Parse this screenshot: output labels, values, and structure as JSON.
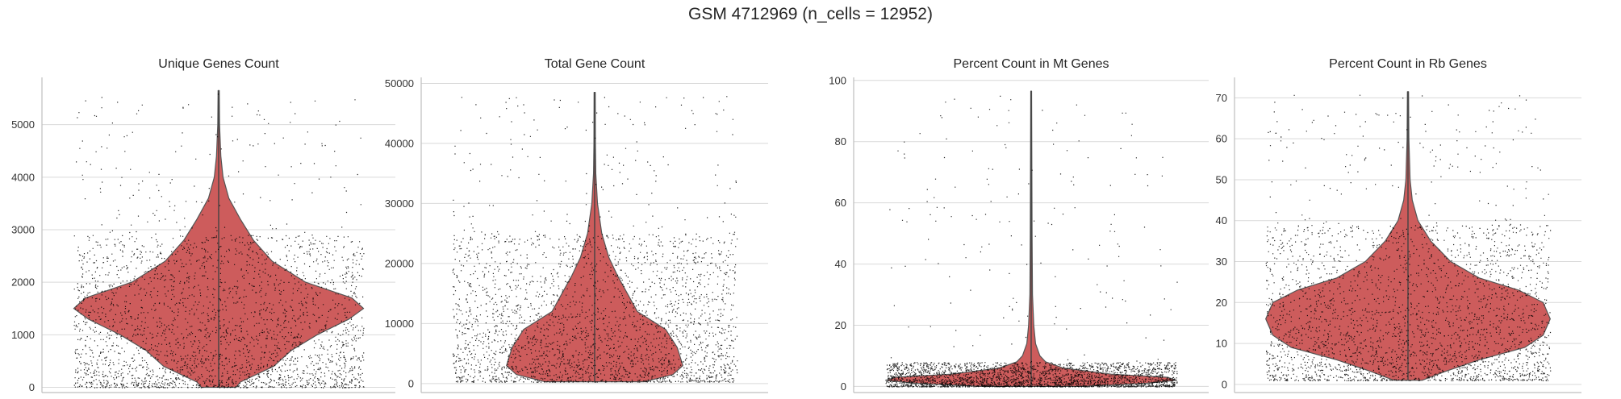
{
  "figure": {
    "suptitle": "GSM 4712969 (n_cells = 12952)"
  },
  "colors": {
    "violin": "#cd5c5c",
    "violin_edge": "#555555",
    "points": "#000000",
    "grid": "#d9d9d9",
    "axis": "#bfbfbf"
  },
  "chart_data": [
    {
      "type": "violin",
      "title": "Unique Genes Count",
      "ylim": [
        -100,
        5900
      ],
      "yticks": [
        0,
        1000,
        2000,
        3000,
        4000,
        5000
      ],
      "ytick_labels": [
        "0",
        "1000",
        "2000",
        "3000",
        "4000",
        "5000"
      ],
      "grid": true,
      "data_min": 0,
      "data_max": 5650,
      "density_profile": [
        [
          0,
          0.12
        ],
        [
          100,
          0.15
        ],
        [
          400,
          0.38
        ],
        [
          700,
          0.5
        ],
        [
          1000,
          0.68
        ],
        [
          1300,
          0.9
        ],
        [
          1500,
          1.0
        ],
        [
          1700,
          0.92
        ],
        [
          2000,
          0.6
        ],
        [
          2400,
          0.37
        ],
        [
          2800,
          0.24
        ],
        [
          3200,
          0.15
        ],
        [
          3600,
          0.07
        ],
        [
          4000,
          0.03
        ],
        [
          4400,
          0.015
        ],
        [
          5000,
          0.006
        ],
        [
          5650,
          0.004
        ]
      ],
      "points_dense_max": 2900,
      "points_sparse_max": 5600
    },
    {
      "type": "violin",
      "title": "Total Gene Count",
      "ylim": [
        -1500,
        51000
      ],
      "yticks": [
        0,
        10000,
        20000,
        30000,
        40000,
        50000
      ],
      "ytick_labels": [
        "0",
        "10000",
        "20000",
        "30000",
        "40000",
        "50000"
      ],
      "grid": true,
      "data_min": 300,
      "data_max": 48500,
      "density_profile": [
        [
          300,
          0.35
        ],
        [
          1500,
          0.55
        ],
        [
          3000,
          0.62
        ],
        [
          6000,
          0.58
        ],
        [
          9000,
          0.5
        ],
        [
          10500,
          0.4
        ],
        [
          12000,
          0.3
        ],
        [
          15000,
          0.23
        ],
        [
          18000,
          0.16
        ],
        [
          21000,
          0.1
        ],
        [
          25000,
          0.05
        ],
        [
          30000,
          0.02
        ],
        [
          35000,
          0.008
        ],
        [
          40000,
          0.005
        ],
        [
          48500,
          0.004
        ]
      ],
      "points_dense_max": 25000,
      "points_sparse_max": 48000
    },
    {
      "type": "violin",
      "title": "Percent Count in Mt Genes",
      "ylim": [
        -2,
        101
      ],
      "yticks": [
        0,
        20,
        40,
        60,
        80,
        100
      ],
      "ytick_labels": [
        "0",
        "20",
        "40",
        "60",
        "80",
        "100"
      ],
      "grid": true,
      "data_min": 0,
      "data_max": 96.5,
      "density_profile": [
        [
          0,
          0.35
        ],
        [
          1,
          0.78
        ],
        [
          2,
          1.0
        ],
        [
          3,
          0.93
        ],
        [
          4,
          0.55
        ],
        [
          6,
          0.22
        ],
        [
          8,
          0.1
        ],
        [
          10,
          0.06
        ],
        [
          14,
          0.03
        ],
        [
          20,
          0.018
        ],
        [
          30,
          0.009
        ],
        [
          50,
          0.006
        ],
        [
          96.5,
          0.003
        ]
      ],
      "points_dense_max": 8,
      "points_sparse_max": 96
    },
    {
      "type": "violin",
      "title": "Percent Count in Rb Genes",
      "ylim": [
        -2,
        75
      ],
      "yticks": [
        0,
        10,
        20,
        30,
        40,
        50,
        60,
        70
      ],
      "ytick_labels": [
        "0",
        "10",
        "20",
        "30",
        "40",
        "50",
        "60",
        "70"
      ],
      "grid": true,
      "data_min": 1,
      "data_max": 71.5,
      "density_profile": [
        [
          1,
          0.1
        ],
        [
          3,
          0.25
        ],
        [
          6,
          0.5
        ],
        [
          9,
          0.82
        ],
        [
          12,
          0.95
        ],
        [
          16,
          1.0
        ],
        [
          20,
          0.95
        ],
        [
          23,
          0.78
        ],
        [
          26,
          0.5
        ],
        [
          30,
          0.3
        ],
        [
          35,
          0.16
        ],
        [
          40,
          0.07
        ],
        [
          45,
          0.03
        ],
        [
          50,
          0.015
        ],
        [
          60,
          0.006
        ],
        [
          71.5,
          0.004
        ]
      ],
      "points_dense_max": 39,
      "points_sparse_max": 71
    }
  ]
}
